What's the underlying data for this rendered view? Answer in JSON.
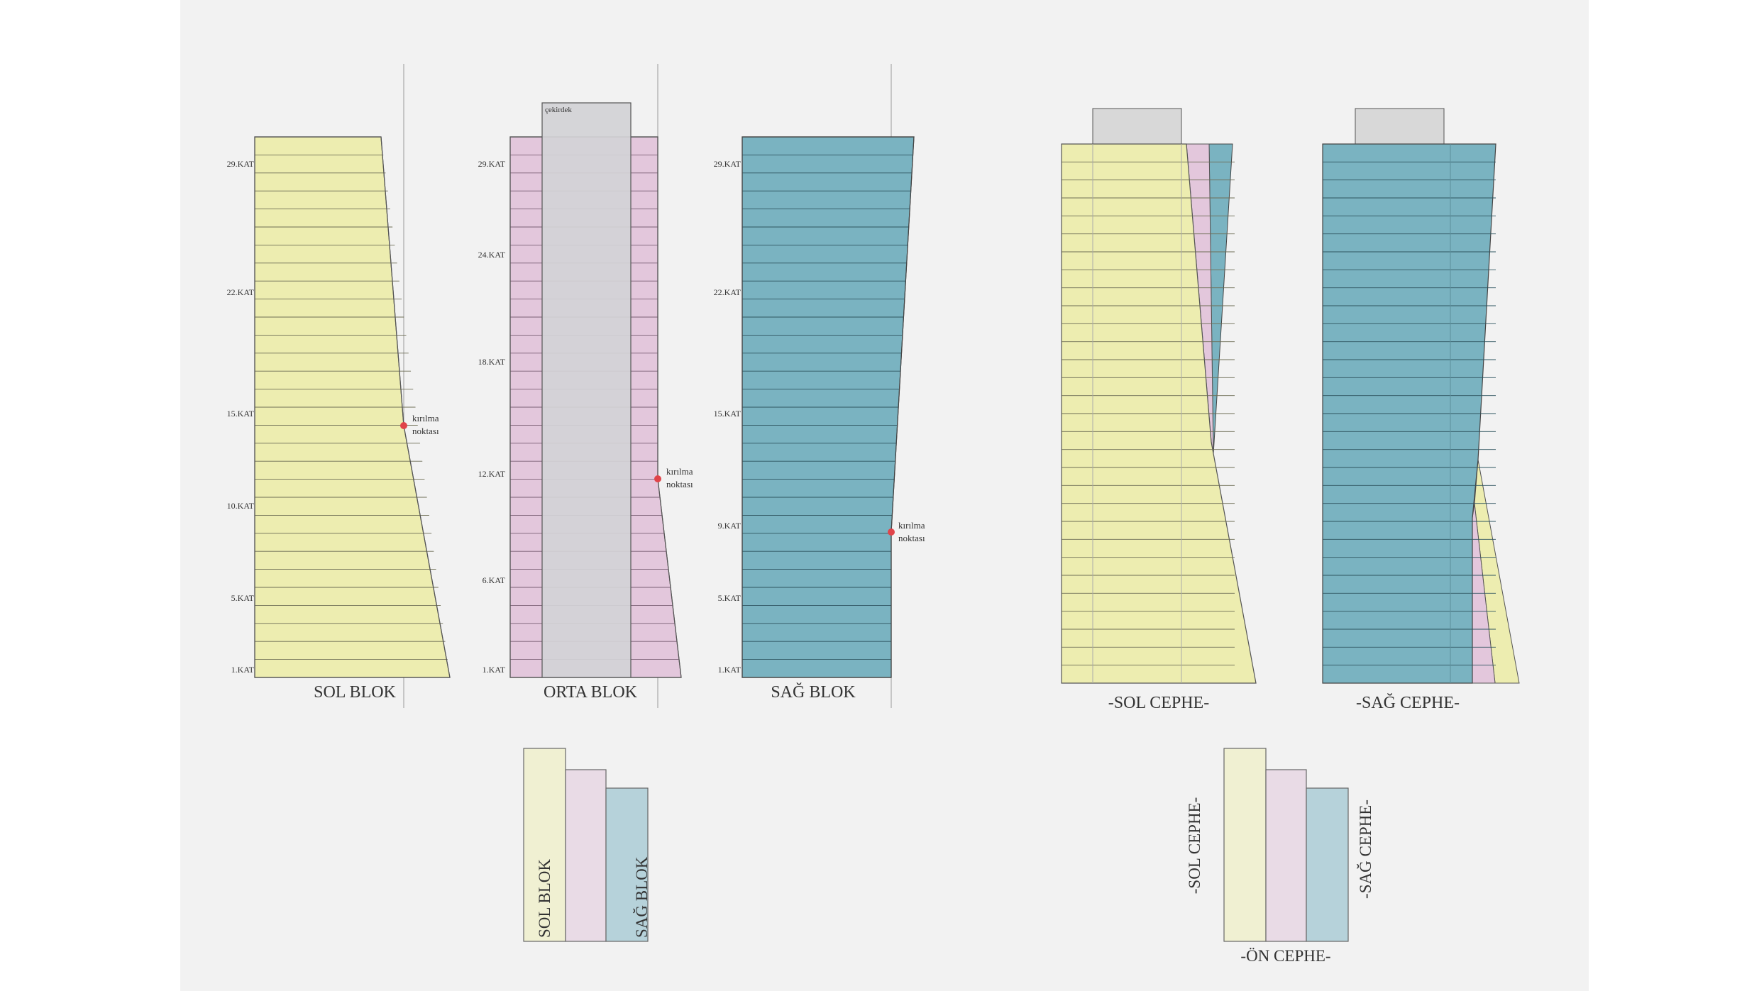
{
  "colors": {
    "sol": "#ededb0",
    "orta": "#e3c7dc",
    "sag": "#7ab3c1",
    "core": "#d3d3d6",
    "cap": "#d8d8d8",
    "marker": "#e0444a",
    "sol_light": "#f0f0d2",
    "orta_light": "#e9dbe6",
    "sag_light": "#b6d2da"
  },
  "blocks": {
    "sol": {
      "title": "SOL BLOK",
      "floor_labels": [
        "29.KAT",
        "22.KAT",
        "15.KAT",
        "10.KAT",
        "5.KAT",
        "1.KAT"
      ],
      "break_label_1": "kırılma",
      "break_label_2": "noktası"
    },
    "orta": {
      "title": "ORTA BLOK",
      "core_label": "çekirdek",
      "floor_labels": [
        "29.KAT",
        "24.KAT",
        "18.KAT",
        "12.KAT",
        "6.KAT",
        "1.KAT"
      ],
      "break_label_1": "kırılma",
      "break_label_2": "noktası"
    },
    "sag": {
      "title": "SAĞ BLOK",
      "floor_labels": [
        "29.KAT",
        "22.KAT",
        "15.KAT",
        "9.KAT",
        "5.KAT",
        "1.KAT"
      ],
      "break_label_1": "kırılma",
      "break_label_2": "noktası"
    }
  },
  "facades": {
    "sol_title": "-SOL CEPHE-",
    "sag_title": "-SAĞ CEPHE-"
  },
  "plans": {
    "block_plan": {
      "left_label": "SOL BLOK",
      "right_label": "SAĞ BLOK"
    },
    "facade_plan": {
      "left_label": "-SOL CEPHE-",
      "right_label": "-SAĞ CEPHE-",
      "bottom_label": "-ÖN CEPHE-"
    }
  }
}
